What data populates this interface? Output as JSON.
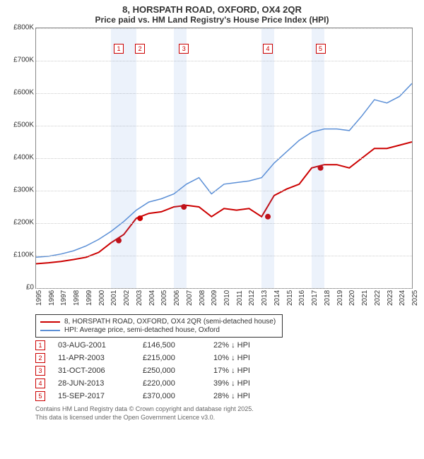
{
  "title": {
    "main": "8, HORSPATH ROAD, OXFORD, OX4 2QR",
    "sub": "Price paid vs. HM Land Registry's House Price Index (HPI)"
  },
  "chart": {
    "type": "line",
    "ylim": [
      0,
      800000
    ],
    "ytick_step": 100000,
    "ytick_labels": [
      "£0",
      "£100K",
      "£200K",
      "£300K",
      "£400K",
      "£500K",
      "£600K",
      "£700K",
      "£800K"
    ],
    "x_years": [
      1995,
      1996,
      1997,
      1998,
      1999,
      2000,
      2001,
      2002,
      2003,
      2004,
      2005,
      2006,
      2007,
      2008,
      2009,
      2010,
      2011,
      2012,
      2013,
      2014,
      2015,
      2016,
      2017,
      2018,
      2019,
      2020,
      2021,
      2022,
      2023,
      2024,
      2025
    ],
    "shaded_year_pairs": [
      [
        2001,
        2002
      ],
      [
        2002,
        2003
      ],
      [
        2006,
        2007
      ],
      [
        2013,
        2014
      ],
      [
        2017,
        2018
      ]
    ],
    "background_color": "#ffffff",
    "grid_color": "#cccccc",
    "series": {
      "property": {
        "color": "#cc0000",
        "width": 2,
        "values_by_year": {
          "1995": 75000,
          "1996": 78000,
          "1997": 82000,
          "1998": 88000,
          "1999": 95000,
          "2000": 110000,
          "2001": 140000,
          "2002": 165000,
          "2003": 215000,
          "2004": 230000,
          "2005": 235000,
          "2006": 250000,
          "2007": 255000,
          "2008": 250000,
          "2009": 220000,
          "2010": 245000,
          "2011": 240000,
          "2012": 245000,
          "2013": 220000,
          "2014": 285000,
          "2015": 305000,
          "2016": 320000,
          "2017": 370000,
          "2018": 380000,
          "2019": 380000,
          "2020": 370000,
          "2021": 400000,
          "2022": 430000,
          "2023": 430000,
          "2024": 440000,
          "2025": 450000
        },
        "sale_markers": [
          {
            "year": 2001.6,
            "value": 146500
          },
          {
            "year": 2003.3,
            "value": 215000
          },
          {
            "year": 2006.8,
            "value": 250000
          },
          {
            "year": 2013.5,
            "value": 220000
          },
          {
            "year": 2017.7,
            "value": 370000
          }
        ]
      },
      "hpi": {
        "color": "#5b8fd6",
        "width": 1.5,
        "values_by_year": {
          "1995": 95000,
          "1996": 98000,
          "1997": 105000,
          "1998": 115000,
          "1999": 130000,
          "2000": 150000,
          "2001": 175000,
          "2002": 205000,
          "2003": 240000,
          "2004": 265000,
          "2005": 275000,
          "2006": 290000,
          "2007": 320000,
          "2008": 340000,
          "2009": 290000,
          "2010": 320000,
          "2011": 325000,
          "2012": 330000,
          "2013": 340000,
          "2014": 385000,
          "2015": 420000,
          "2016": 455000,
          "2017": 480000,
          "2018": 490000,
          "2019": 490000,
          "2020": 485000,
          "2021": 530000,
          "2022": 580000,
          "2023": 570000,
          "2024": 590000,
          "2025": 630000
        }
      }
    },
    "chart_markers": [
      {
        "n": "1",
        "year": 2001.6
      },
      {
        "n": "2",
        "year": 2003.3
      },
      {
        "n": "3",
        "year": 2006.8
      },
      {
        "n": "4",
        "year": 2013.5
      },
      {
        "n": "5",
        "year": 2017.7
      }
    ]
  },
  "legend": [
    {
      "color": "#cc0000",
      "label": "8, HORSPATH ROAD, OXFORD, OX4 2QR (semi-detached house)"
    },
    {
      "color": "#5b8fd6",
      "label": "HPI: Average price, semi-detached house, Oxford"
    }
  ],
  "transactions": [
    {
      "n": "1",
      "date": "03-AUG-2001",
      "price": "£146,500",
      "delta": "22% ↓ HPI"
    },
    {
      "n": "2",
      "date": "11-APR-2003",
      "price": "£215,000",
      "delta": "10% ↓ HPI"
    },
    {
      "n": "3",
      "date": "31-OCT-2006",
      "price": "£250,000",
      "delta": "17% ↓ HPI"
    },
    {
      "n": "4",
      "date": "28-JUN-2013",
      "price": "£220,000",
      "delta": "39% ↓ HPI"
    },
    {
      "n": "5",
      "date": "15-SEP-2017",
      "price": "£370,000",
      "delta": "28% ↓ HPI"
    }
  ],
  "footer": {
    "line1": "Contains HM Land Registry data © Crown copyright and database right 2025.",
    "line2": "This data is licensed under the Open Government Licence v3.0."
  }
}
